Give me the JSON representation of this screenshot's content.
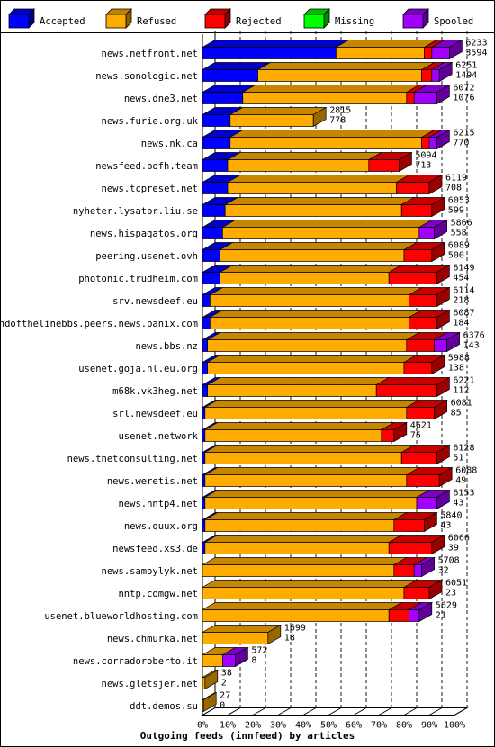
{
  "chart_data": {
    "type": "bar",
    "orientation": "horizontal",
    "stacked": true,
    "style": "3d",
    "title": "Outgoing feeds (innfeed) by articles",
    "xlim": [
      0,
      100
    ],
    "x_ticks": [
      "0%",
      "10%",
      "20%",
      "30%",
      "40%",
      "50%",
      "60%",
      "70%",
      "80%",
      "90%",
      "100%"
    ],
    "grid": "vertical dashed",
    "legend_position": "top",
    "series": [
      {
        "name": "Accepted",
        "color": "#0000ff"
      },
      {
        "name": "Refused",
        "color": "#ffac00"
      },
      {
        "name": "Rejected",
        "color": "#ff0000"
      },
      {
        "name": "Missing",
        "color": "#00ff00"
      },
      {
        "name": "Spooled",
        "color": "#a200ff"
      }
    ],
    "categories": [
      "news.netfront.net",
      "news.sonologic.net",
      "news.dne3.net",
      "news.furie.org.uk",
      "news.nk.ca",
      "newsfeed.bofh.team",
      "news.tcpreset.net",
      "nyheter.lysator.liu.se",
      "news.hispagatos.org",
      "peering.usenet.ovh",
      "photonic.trudheim.com",
      "srv.newsdeef.eu",
      "endofthelinebbs.peers.news.panix.com",
      "news.bbs.nz",
      "usenet.goja.nl.eu.org",
      "m68k.vk3heg.net",
      "srl.newsdeef.eu",
      "usenet.network",
      "news.tnetconsulting.net",
      "news.weretis.net",
      "news.nntp4.net",
      "news.quux.org",
      "newsfeed.xs3.de",
      "news.samoylyk.net",
      "nntp.comgw.net",
      "usenet.blueworldhosting.com",
      "news.chmurka.net",
      "news.corradoroberto.it",
      "news.gletsjer.net",
      "ddt.demos.su"
    ],
    "offered": [
      6233,
      6251,
      6072,
      2815,
      6215,
      5094,
      6119,
      6053,
      5866,
      6089,
      6149,
      6114,
      6087,
      6376,
      5988,
      6221,
      6081,
      4621,
      6128,
      6088,
      6153,
      5840,
      6066,
      5708,
      6051,
      5629,
      1699,
      572,
      38,
      27
    ],
    "accepted": [
      3594,
      1494,
      1076,
      778,
      770,
      713,
      708,
      599,
      558,
      500,
      454,
      218,
      184,
      143,
      138,
      112,
      85,
      75,
      51,
      49,
      43,
      43,
      39,
      32,
      23,
      21,
      18,
      8,
      2,
      0
    ],
    "percent_of_max": {
      "accepted": [
        53,
        22,
        16,
        11,
        11,
        10,
        10,
        9,
        8,
        7,
        7,
        3,
        3,
        2,
        2,
        2,
        1,
        1,
        1,
        1,
        1,
        1,
        1,
        0,
        0,
        0,
        0,
        0,
        0,
        0
      ],
      "refused": [
        35,
        65,
        65,
        33,
        76,
        56,
        67,
        70,
        78,
        73,
        67,
        79,
        79,
        79,
        78,
        67,
        80,
        70,
        78,
        80,
        84,
        75,
        73,
        76,
        80,
        74,
        26,
        8,
        1,
        0
      ],
      "rejected": [
        3,
        4,
        3,
        0,
        3,
        12,
        13,
        12,
        0,
        11,
        19,
        11,
        11,
        11,
        11,
        24,
        11,
        5,
        14,
        13,
        0,
        12,
        17,
        8,
        10,
        8,
        0,
        0,
        0,
        0
      ],
      "missing": [
        0,
        0,
        0,
        0,
        0,
        0,
        0,
        0,
        0,
        0,
        0,
        0,
        0,
        0,
        0,
        0,
        0,
        0,
        0,
        0,
        0,
        0,
        0,
        0,
        0,
        0,
        0,
        0,
        0,
        0
      ],
      "spooled": [
        7,
        3,
        9,
        0,
        3,
        0,
        0,
        0,
        6,
        0,
        0,
        0,
        0,
        5,
        0,
        0,
        0,
        0,
        0,
        0,
        8,
        0,
        0,
        3,
        0,
        4,
        0,
        5,
        0,
        0
      ]
    },
    "xlabel": "",
    "ylabel": ""
  }
}
